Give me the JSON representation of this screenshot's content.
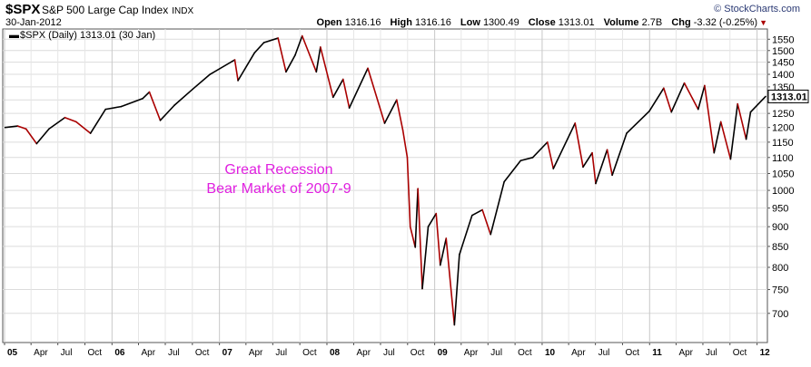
{
  "header": {
    "symbol": "$SPX",
    "name": "S&P 500 Large Cap Index",
    "exchange": "INDX",
    "date": "30-Jan-2012",
    "brand": "© StockCharts.com",
    "ohlc": {
      "open_label": "Open",
      "open": "1316.16",
      "high_label": "High",
      "high": "1316.16",
      "low_label": "Low",
      "low": "1300.49",
      "close_label": "Close",
      "close": "1313.01",
      "volume_label": "Volume",
      "volume": "2.7B",
      "chg_label": "Chg",
      "chg": "-3.32 (-0.25%)"
    },
    "down_color": "#aa0000"
  },
  "legend": "$SPX (Daily) 1313.01 (30 Jan)",
  "annotation": {
    "line1": "Great Recession",
    "line2": "Bear Market of 2007-9",
    "color": "#e020e0"
  },
  "chart_data": {
    "type": "line",
    "scale": "log",
    "title": "$SPX (Daily) 1313.01 (30 Jan)",
    "ylim": [
      650,
      1580
    ],
    "yticks": [
      700,
      750,
      800,
      850,
      900,
      950,
      1000,
      1050,
      1100,
      1150,
      1200,
      1250,
      1300,
      1350,
      1400,
      1450,
      1500,
      1550
    ],
    "last_value_label": "1313.01",
    "grid": true,
    "line_color": "#000000",
    "down_color": "#aa0000",
    "x_range": [
      "2005-01",
      "2012-01-30"
    ],
    "xticks": [
      {
        "x": "2005-01",
        "label": "05",
        "bold": true
      },
      {
        "x": "2005-04",
        "label": "Apr"
      },
      {
        "x": "2005-07",
        "label": "Jul"
      },
      {
        "x": "2005-10",
        "label": "Oct"
      },
      {
        "x": "2006-01",
        "label": "06",
        "bold": true
      },
      {
        "x": "2006-04",
        "label": "Apr"
      },
      {
        "x": "2006-07",
        "label": "Jul"
      },
      {
        "x": "2006-10",
        "label": "Oct"
      },
      {
        "x": "2007-01",
        "label": "07",
        "bold": true
      },
      {
        "x": "2007-04",
        "label": "Apr"
      },
      {
        "x": "2007-07",
        "label": "Jul"
      },
      {
        "x": "2007-10",
        "label": "Oct"
      },
      {
        "x": "2008-01",
        "label": "08",
        "bold": true
      },
      {
        "x": "2008-04",
        "label": "Apr"
      },
      {
        "x": "2008-07",
        "label": "Jul"
      },
      {
        "x": "2008-10",
        "label": "Oct"
      },
      {
        "x": "2009-01",
        "label": "09",
        "bold": true
      },
      {
        "x": "2009-04",
        "label": "Apr"
      },
      {
        "x": "2009-07",
        "label": "Jul"
      },
      {
        "x": "2009-10",
        "label": "Oct"
      },
      {
        "x": "2010-01",
        "label": "10",
        "bold": true
      },
      {
        "x": "2010-04",
        "label": "Apr"
      },
      {
        "x": "2010-07",
        "label": "Jul"
      },
      {
        "x": "2010-10",
        "label": "Oct"
      },
      {
        "x": "2011-01",
        "label": "11",
        "bold": true
      },
      {
        "x": "2011-04",
        "label": "Apr"
      },
      {
        "x": "2011-07",
        "label": "Jul"
      },
      {
        "x": "2011-10",
        "label": "Oct"
      },
      {
        "x": "2012-01",
        "label": "12",
        "bold": true
      }
    ],
    "series": [
      {
        "points": [
          [
            "2005-01-03",
            1200
          ],
          [
            "2005-02-15",
            1205
          ],
          [
            "2005-03-15",
            1195
          ],
          [
            "2005-04-20",
            1145
          ],
          [
            "2005-06-01",
            1195
          ],
          [
            "2005-07-25",
            1235
          ],
          [
            "2005-09-01",
            1220
          ],
          [
            "2005-10-20",
            1180
          ],
          [
            "2005-12-10",
            1265
          ],
          [
            "2006-02-01",
            1275
          ],
          [
            "2006-04-15",
            1305
          ],
          [
            "2006-05-08",
            1330
          ],
          [
            "2006-06-14",
            1225
          ],
          [
            "2006-08-01",
            1280
          ],
          [
            "2006-10-01",
            1340
          ],
          [
            "2006-11-30",
            1400
          ],
          [
            "2007-02-22",
            1460
          ],
          [
            "2007-03-05",
            1375
          ],
          [
            "2007-04-30",
            1490
          ],
          [
            "2007-06-01",
            1535
          ],
          [
            "2007-07-19",
            1555
          ],
          [
            "2007-08-15",
            1410
          ],
          [
            "2007-09-15",
            1480
          ],
          [
            "2007-10-09",
            1565
          ],
          [
            "2007-11-26",
            1410
          ],
          [
            "2007-12-10",
            1515
          ],
          [
            "2008-01-22",
            1310
          ],
          [
            "2008-02-25",
            1380
          ],
          [
            "2008-03-17",
            1270
          ],
          [
            "2008-05-19",
            1425
          ],
          [
            "2008-07-15",
            1215
          ],
          [
            "2008-08-25",
            1300
          ],
          [
            "2008-09-15",
            1190
          ],
          [
            "2008-09-30",
            1100
          ],
          [
            "2008-10-10",
            900
          ],
          [
            "2008-10-27",
            848
          ],
          [
            "2008-11-05",
            1005
          ],
          [
            "2008-11-20",
            752
          ],
          [
            "2008-12-10",
            900
          ],
          [
            "2009-01-06",
            935
          ],
          [
            "2009-01-20",
            805
          ],
          [
            "2009-02-09",
            870
          ],
          [
            "2009-03-09",
            677
          ],
          [
            "2009-03-26",
            830
          ],
          [
            "2009-05-08",
            930
          ],
          [
            "2009-06-12",
            945
          ],
          [
            "2009-07-10",
            880
          ],
          [
            "2009-08-25",
            1025
          ],
          [
            "2009-10-20",
            1090
          ],
          [
            "2009-11-30",
            1100
          ],
          [
            "2010-01-19",
            1150
          ],
          [
            "2010-02-08",
            1065
          ],
          [
            "2010-04-23",
            1215
          ],
          [
            "2010-05-20",
            1070
          ],
          [
            "2010-06-20",
            1115
          ],
          [
            "2010-07-02",
            1020
          ],
          [
            "2010-08-10",
            1125
          ],
          [
            "2010-08-27",
            1045
          ],
          [
            "2010-10-15",
            1180
          ],
          [
            "2010-12-31",
            1258
          ],
          [
            "2011-02-18",
            1345
          ],
          [
            "2011-03-16",
            1255
          ],
          [
            "2011-04-29",
            1365
          ],
          [
            "2011-06-15",
            1265
          ],
          [
            "2011-07-07",
            1355
          ],
          [
            "2011-08-08",
            1115
          ],
          [
            "2011-08-31",
            1220
          ],
          [
            "2011-10-03",
            1095
          ],
          [
            "2011-10-27",
            1285
          ],
          [
            "2011-11-25",
            1160
          ],
          [
            "2011-12-10",
            1255
          ],
          [
            "2012-01-30",
            1313
          ]
        ]
      }
    ]
  }
}
